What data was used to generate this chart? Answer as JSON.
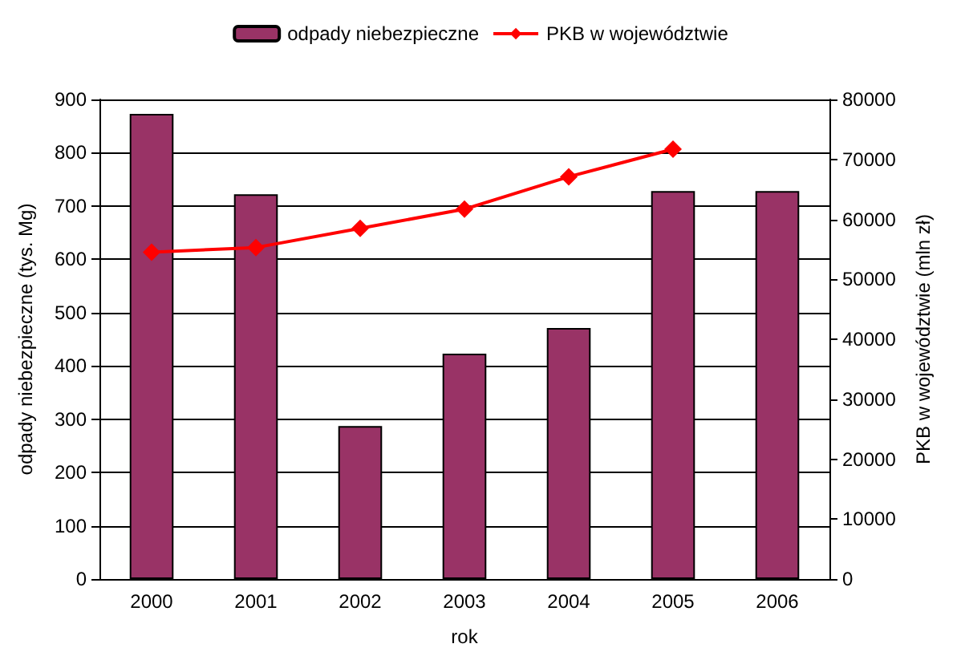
{
  "chart_data": {
    "type": "bar",
    "xlabel": "rok",
    "ylabel": "odpady niebezpieczne (tys. Mg)",
    "y2label": "PKB w województwie (mln zł)",
    "categories": [
      "2000",
      "2001",
      "2002",
      "2003",
      "2004",
      "2005",
      "2006"
    ],
    "series": [
      {
        "name": "odpady niebezpieczne",
        "color": "#993366",
        "values": [
          873,
          722,
          287,
          423,
          471,
          728,
          728
        ]
      },
      {
        "name": "PKB w województwie",
        "type": "line",
        "axis": "y2",
        "color": "#ff0000",
        "marker": "diamond",
        "values": [
          54500,
          55300,
          58500,
          61700,
          67100,
          71700,
          null
        ]
      }
    ],
    "ylim": [
      0,
      900
    ],
    "yticks": [
      0,
      100,
      200,
      300,
      400,
      500,
      600,
      700,
      800,
      900
    ],
    "y2lim": [
      0,
      80000
    ],
    "y2ticks": [
      0,
      10000,
      20000,
      30000,
      40000,
      50000,
      60000,
      70000,
      80000
    ],
    "grid": "y",
    "legend": "top"
  }
}
